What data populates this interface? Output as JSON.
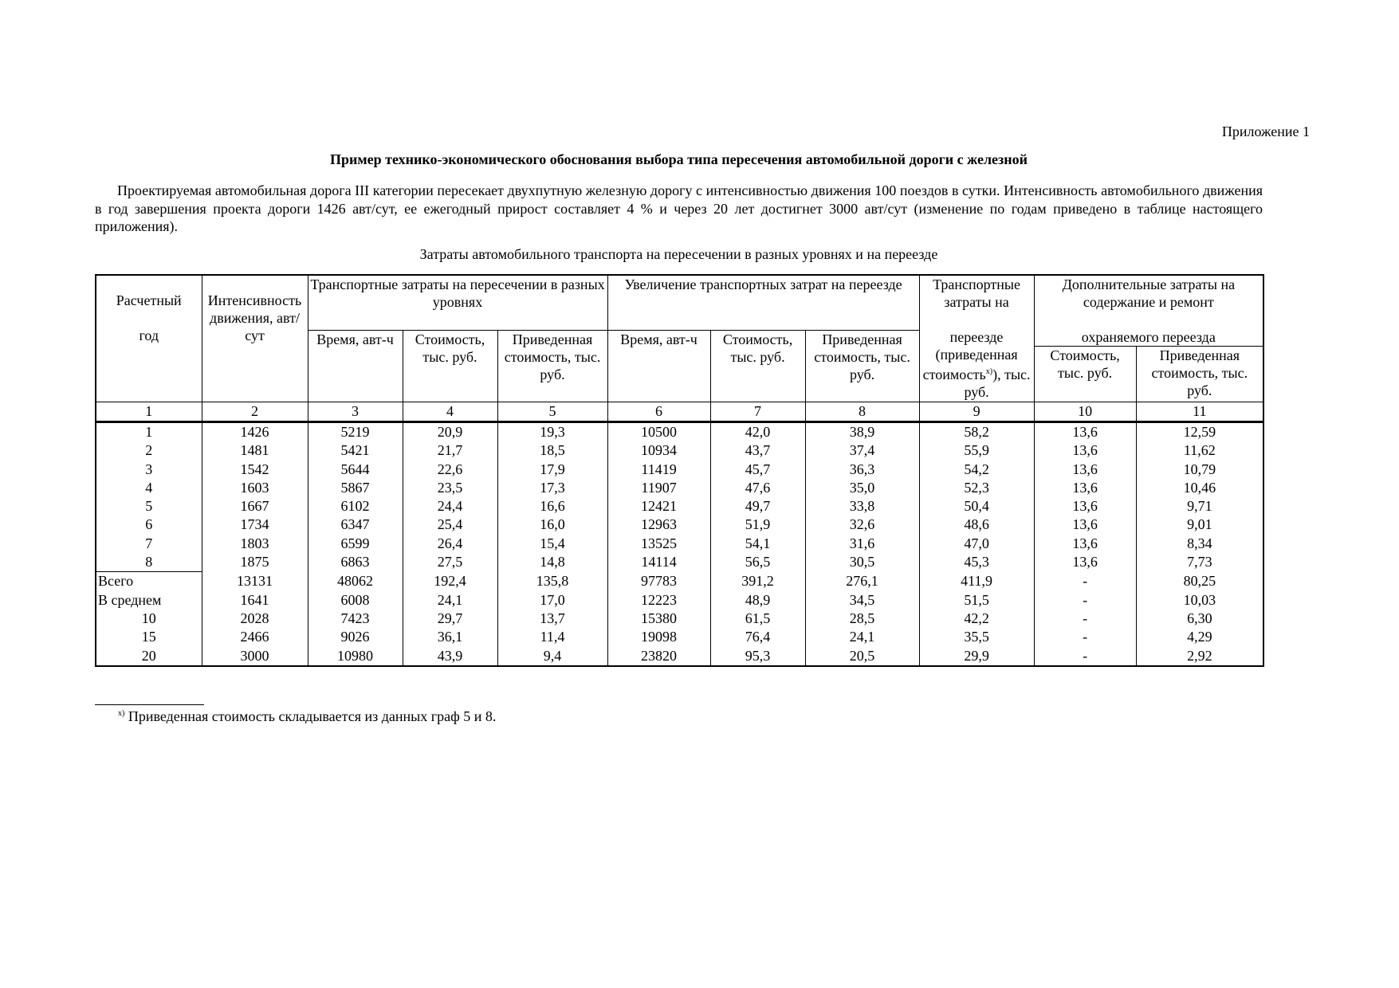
{
  "appendix": "Приложение 1",
  "title": "Пример технико-экономического обоснования выбора типа  пересечения автомобильной дороги с железной",
  "paragraph": "Проектируемая автомобильная дорога III категории пересекает двухпутную железную дорогу с интенсивностью движения 100 поездов в сутки. Интенсивность автомобильного движения в год завершения проекта дороги 1426 авт/сут, ее ежегодный прирост составляет 4 % и через 20 лет достигнет 3000 авт/сут (изменение по годам приведено в таблице настоящего приложения).",
  "table_caption": "Затраты автомобильного транспорта на пересечении в разных уровнях и на переезде",
  "header": {
    "col1_a": "Расчетный",
    "col1_b": "год",
    "col2": "Интенсивность движения, авт/сут",
    "group1": "Транспортные затраты на пересечении в разных уровнях",
    "group2": "Увеличение транспортных затрат на переезде",
    "col9_a": "Транспортные затраты на",
    "col9_b": "переезде (приведенная стоимость",
    "col9_sup": "x)",
    "col9_c": "), тыс. руб.",
    "group3_a": "Дополнительные затраты на содержание и ремонт",
    "group3_b": "охраняемого переезда",
    "col3": "Время, авт-ч",
    "col4": "Стоимость, тыс. руб.",
    "col5": "Приведенная стоимость, тыс. руб.",
    "col6": "Время, авт-ч",
    "col7": "Стоимость, тыс. руб.",
    "col8": "Приведенная стоимость, тыс. руб.",
    "col10": "Стоимость, тыс. руб.",
    "col11": "Приведенная стоимость, тыс. руб."
  },
  "column_numbers": [
    "1",
    "2",
    "3",
    "4",
    "5",
    "6",
    "7",
    "8",
    "9",
    "10",
    "11"
  ],
  "rows": [
    [
      "1",
      "1426",
      "5219",
      "20,9",
      "19,3",
      "10500",
      "42,0",
      "38,9",
      "58,2",
      "13,6",
      "12,59"
    ],
    [
      "2",
      "1481",
      "5421",
      "21,7",
      "18,5",
      "10934",
      "43,7",
      "37,4",
      "55,9",
      "13,6",
      "11,62"
    ],
    [
      "3",
      "1542",
      "5644",
      "22,6",
      "17,9",
      "11419",
      "45,7",
      "36,3",
      "54,2",
      "13,6",
      "10,79"
    ],
    [
      "4",
      "1603",
      "5867",
      "23,5",
      "17,3",
      "11907",
      "47,6",
      "35,0",
      "52,3",
      "13,6",
      "10,46"
    ],
    [
      "5",
      "1667",
      "6102",
      "24,4",
      "16,6",
      "12421",
      "49,7",
      "33,8",
      "50,4",
      "13,6",
      "9,71"
    ],
    [
      "6",
      "1734",
      "6347",
      "25,4",
      "16,0",
      "12963",
      "51,9",
      "32,6",
      "48,6",
      "13,6",
      "9,01"
    ],
    [
      "7",
      "1803",
      "6599",
      "26,4",
      "15,4",
      "13525",
      "54,1",
      "31,6",
      "47,0",
      "13,6",
      "8,34"
    ],
    [
      "8",
      "1875",
      "6863",
      "27,5",
      "14,8",
      "14114",
      "56,5",
      "30,5",
      "45,3",
      "13,6",
      "7,73"
    ],
    [
      "Всего",
      "13131",
      "48062",
      "192,4",
      "135,8",
      "97783",
      "391,2",
      "276,1",
      "411,9",
      "-",
      "80,25"
    ],
    [
      "В среднем",
      "1641",
      "6008",
      "24,1",
      "17,0",
      "12223",
      "48,9",
      "34,5",
      "51,5",
      "-",
      "10,03"
    ],
    [
      "10",
      "2028",
      "7423",
      "29,7",
      "13,7",
      "15380",
      "61,5",
      "28,5",
      "42,2",
      "-",
      "6,30"
    ],
    [
      "15",
      "2466",
      "9026",
      "36,1",
      "11,4",
      "19098",
      "76,4",
      "24,1",
      "35,5",
      "-",
      "4,29"
    ],
    [
      "20",
      "3000",
      "10980",
      "43,9",
      "9,4",
      "23820",
      "95,3",
      "20,5",
      "29,9",
      "-",
      "2,92"
    ]
  ],
  "footnote_mark": "x)",
  "footnote": " Приведенная стоимость складывается из данных граф 5 и 8."
}
